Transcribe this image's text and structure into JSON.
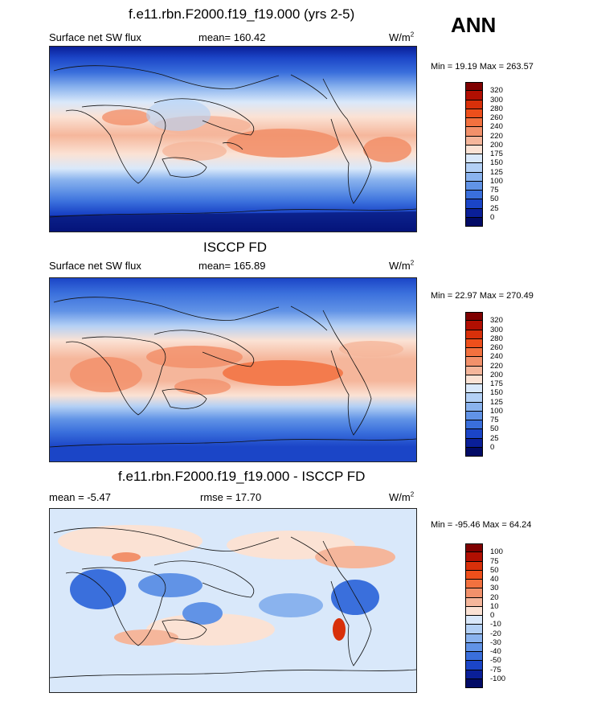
{
  "season": "ANN",
  "units": "W/m",
  "units_exp": "2",
  "panels": [
    {
      "title": "f.e11.rbn.F2000.f19_f19.000 (yrs 2-5)",
      "left_label": "Surface net SW flux",
      "center_label": "mean= 160.42",
      "minmax": "Min =  19.19 Max = 263.57",
      "levels": [
        "320",
        "300",
        "280",
        "260",
        "240",
        "220",
        "200",
        "175",
        "150",
        "125",
        "100",
        "75",
        "50",
        "25",
        "0"
      ],
      "colors": [
        "#7f0000",
        "#b10f02",
        "#d8300a",
        "#ee4f1b",
        "#f2713f",
        "#f2916b",
        "#f5b69b",
        "#fbe2d4",
        "#d9e8fa",
        "#b3d0f5",
        "#8ab3ee",
        "#6193e6",
        "#3a6fdc",
        "#1b45c7",
        "#0a1f98",
        "#020b66"
      ]
    },
    {
      "title": "ISCCP FD",
      "left_label": "Surface net SW flux",
      "center_label": "mean= 165.89",
      "minmax": "Min =  22.97 Max = 270.49",
      "levels": [
        "320",
        "300",
        "280",
        "260",
        "240",
        "220",
        "200",
        "175",
        "150",
        "125",
        "100",
        "75",
        "50",
        "25",
        "0"
      ],
      "colors": [
        "#7f0000",
        "#b10f02",
        "#d8300a",
        "#ee4f1b",
        "#f2713f",
        "#f2916b",
        "#f5b69b",
        "#fbe2d4",
        "#d9e8fa",
        "#b3d0f5",
        "#8ab3ee",
        "#6193e6",
        "#3a6fdc",
        "#1b45c7",
        "#0a1f98",
        "#020b66"
      ]
    },
    {
      "title": "f.e11.rbn.F2000.f19_f19.000 - ISCCP FD",
      "left_label": "mean =  -5.47",
      "center_label": "rmse =  17.70",
      "minmax": "Min = -95.46 Max =  64.24",
      "levels": [
        "100",
        "75",
        "50",
        "40",
        "30",
        "20",
        "10",
        "0",
        "-10",
        "-20",
        "-30",
        "-40",
        "-50",
        "-75",
        "-100"
      ],
      "colors": [
        "#7f0000",
        "#b10f02",
        "#d8300a",
        "#ee4f1b",
        "#f2713f",
        "#f2916b",
        "#f5b69b",
        "#fbe2d4",
        "#d9e8fa",
        "#b3d0f5",
        "#8ab3ee",
        "#6193e6",
        "#3a6fdc",
        "#1b45c7",
        "#0a1f98",
        "#020b66"
      ]
    }
  ],
  "chart_data": [
    {
      "type": "heatmap",
      "title": "f.e11.rbn.F2000.f19_f19.000 (yrs 2-5)",
      "variable": "Surface net SW flux",
      "mean": 160.42,
      "min": 19.19,
      "max": 263.57,
      "units": "W/m2",
      "contour_levels": [
        0,
        25,
        50,
        75,
        100,
        125,
        150,
        175,
        200,
        220,
        240,
        260,
        280,
        300,
        320
      ]
    },
    {
      "type": "heatmap",
      "title": "ISCCP FD",
      "variable": "Surface net SW flux",
      "mean": 165.89,
      "min": 22.97,
      "max": 270.49,
      "units": "W/m2",
      "contour_levels": [
        0,
        25,
        50,
        75,
        100,
        125,
        150,
        175,
        200,
        220,
        240,
        260,
        280,
        300,
        320
      ]
    },
    {
      "type": "heatmap",
      "title": "f.e11.rbn.F2000.f19_f19.000 - ISCCP FD",
      "mean": -5.47,
      "rmse": 17.7,
      "min": -95.46,
      "max": 64.24,
      "units": "W/m2",
      "contour_levels": [
        -100,
        -75,
        -50,
        -40,
        -30,
        -20,
        -10,
        0,
        10,
        20,
        30,
        40,
        50,
        75,
        100
      ]
    }
  ]
}
